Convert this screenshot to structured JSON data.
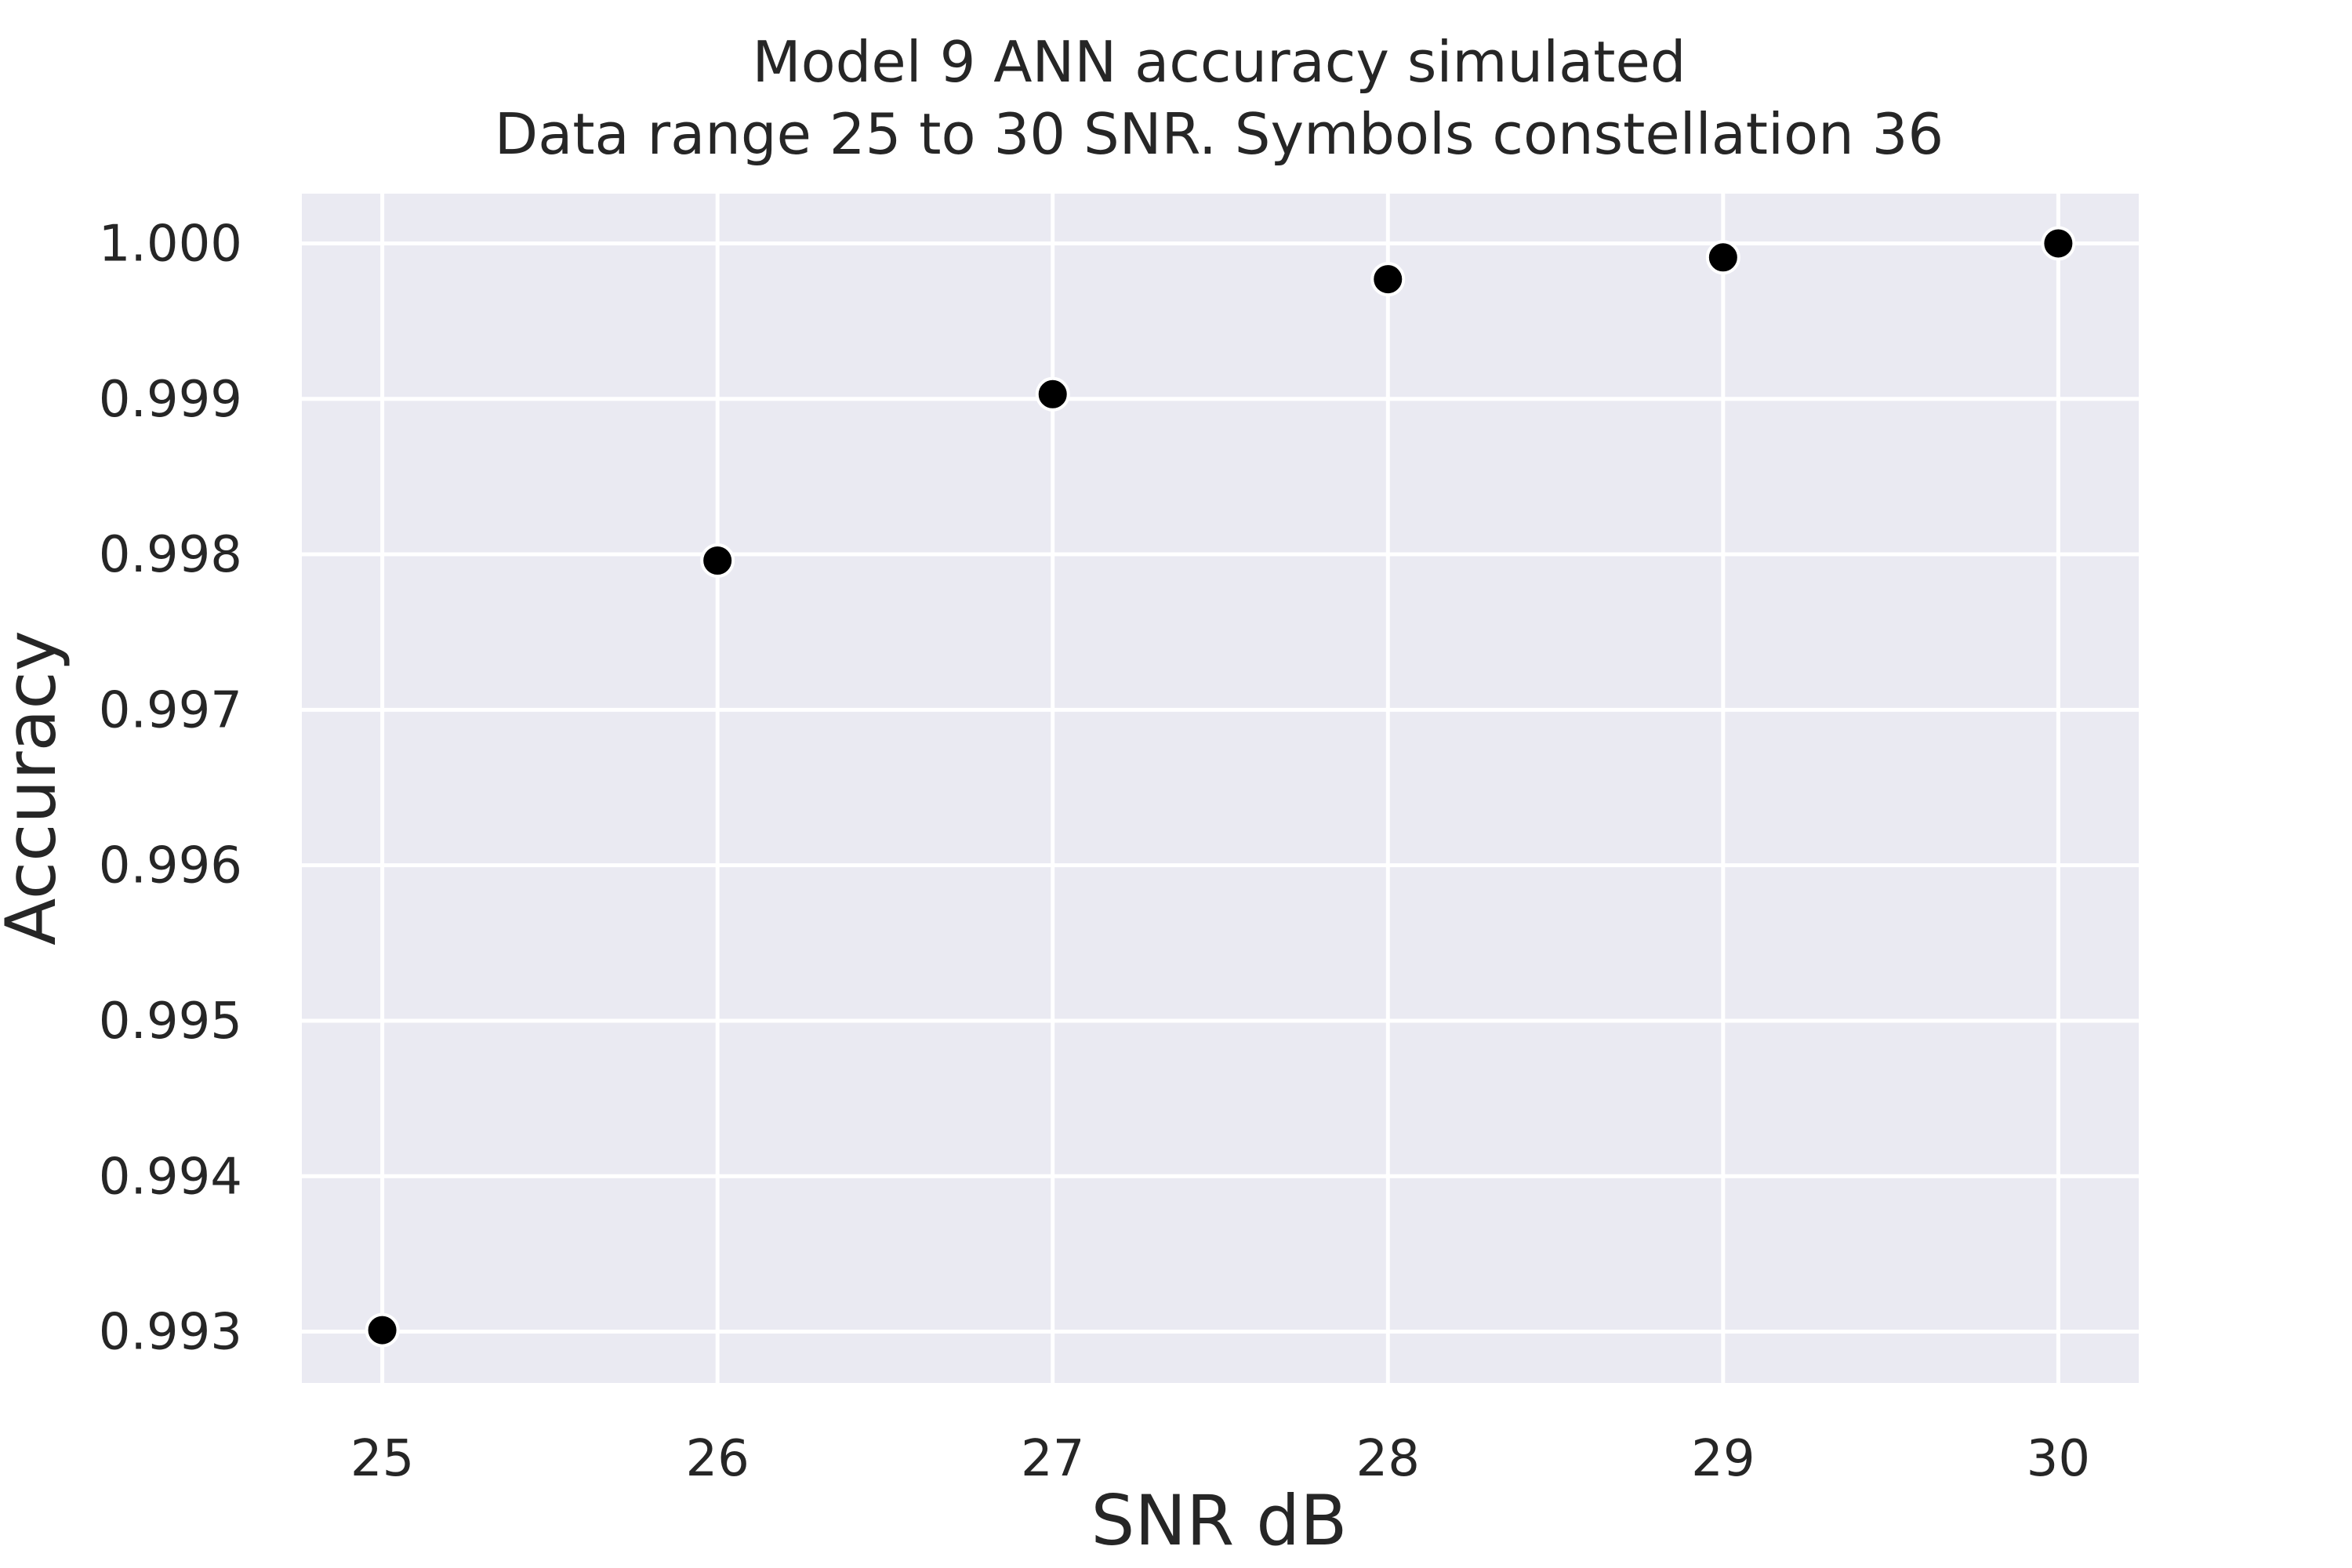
{
  "chart_data": {
    "type": "scatter",
    "title": "Model 9 ANN accuracy simulated",
    "subtitle": "Data range 25 to 30 SNR. Symbols constellation 36",
    "xlabel": "SNR dB",
    "ylabel": "Accuracy",
    "x": [
      25,
      26,
      27,
      28,
      29,
      30
    ],
    "y": [
      0.99301,
      0.99796,
      0.99903,
      0.99977,
      0.99991,
      1.0
    ],
    "xlim": [
      24.76,
      30.24
    ],
    "ylim": [
      0.99267,
      1.00032
    ],
    "x_ticks": [
      25,
      26,
      27,
      28,
      29,
      30
    ],
    "x_tick_labels": [
      "25",
      "26",
      "27",
      "28",
      "29",
      "30"
    ],
    "y_ticks": [
      0.993,
      0.994,
      0.995,
      0.996,
      0.997,
      0.998,
      0.999,
      1.0
    ],
    "y_tick_labels": [
      "0.993",
      "0.994",
      "0.995",
      "0.996",
      "0.997",
      "0.998",
      "0.999",
      "1.000"
    ],
    "grid": true,
    "legend": "none",
    "colors": {
      "plot_background": "#EAEAF2",
      "grid": "#FFFFFF",
      "marker_fill": "#000000",
      "marker_edge": "#FFFFFF",
      "text": "#262626"
    }
  }
}
